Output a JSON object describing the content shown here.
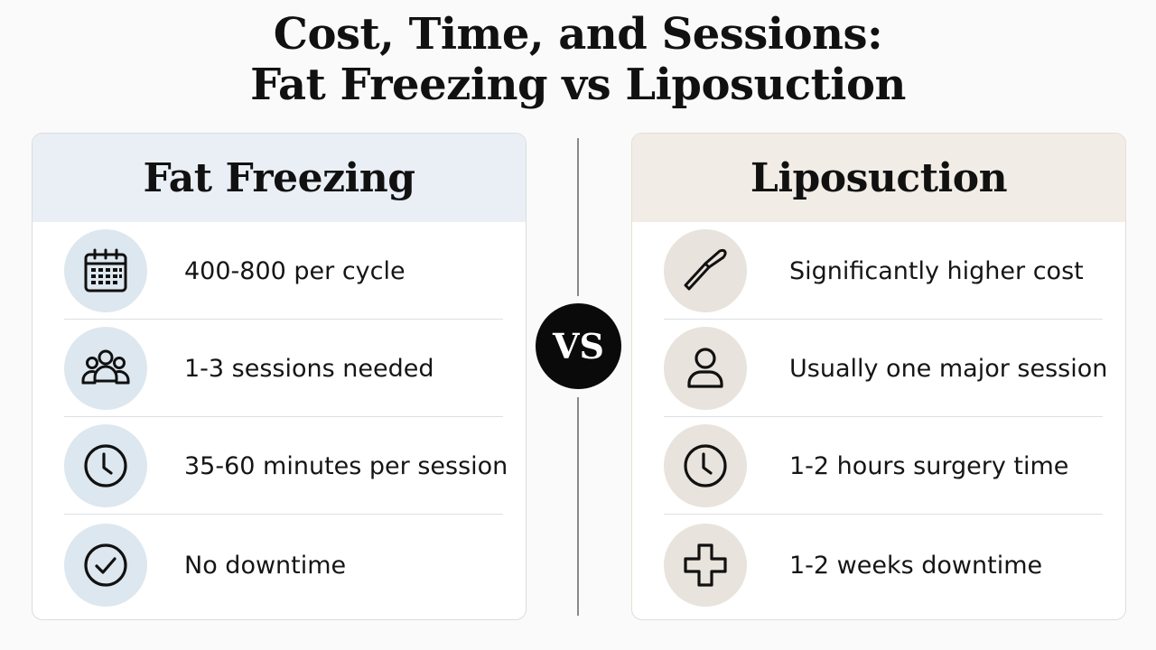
{
  "title": {
    "line1": "Cost, Time, and Sessions:",
    "line2": "Fat Freezing vs Liposuction"
  },
  "vs_label": "VS",
  "left": {
    "heading": "Fat Freezing",
    "rows": [
      {
        "icon": "calendar-icon",
        "text": "400-800 per cycle"
      },
      {
        "icon": "group-icon",
        "text": "1-3 sessions needed"
      },
      {
        "icon": "clock-icon",
        "text": "35-60 minutes per session"
      },
      {
        "icon": "check-circle-icon",
        "text": "No downtime"
      }
    ]
  },
  "right": {
    "heading": "Liposuction",
    "rows": [
      {
        "icon": "scalpel-icon",
        "text": "Significantly higher cost"
      },
      {
        "icon": "person-icon",
        "text": "Usually one major session"
      },
      {
        "icon": "clock-icon",
        "text": "1-2 hours surgery time"
      },
      {
        "icon": "medical-cross-icon",
        "text": "1-2 weeks downtime"
      }
    ]
  },
  "colors": {
    "left_header_bg": "#e9eff5",
    "left_icon_bg": "#dde7ef",
    "right_header_bg": "#f1ede6",
    "right_icon_bg": "#e8e3dc",
    "vs_bg": "#0a0a0a"
  }
}
